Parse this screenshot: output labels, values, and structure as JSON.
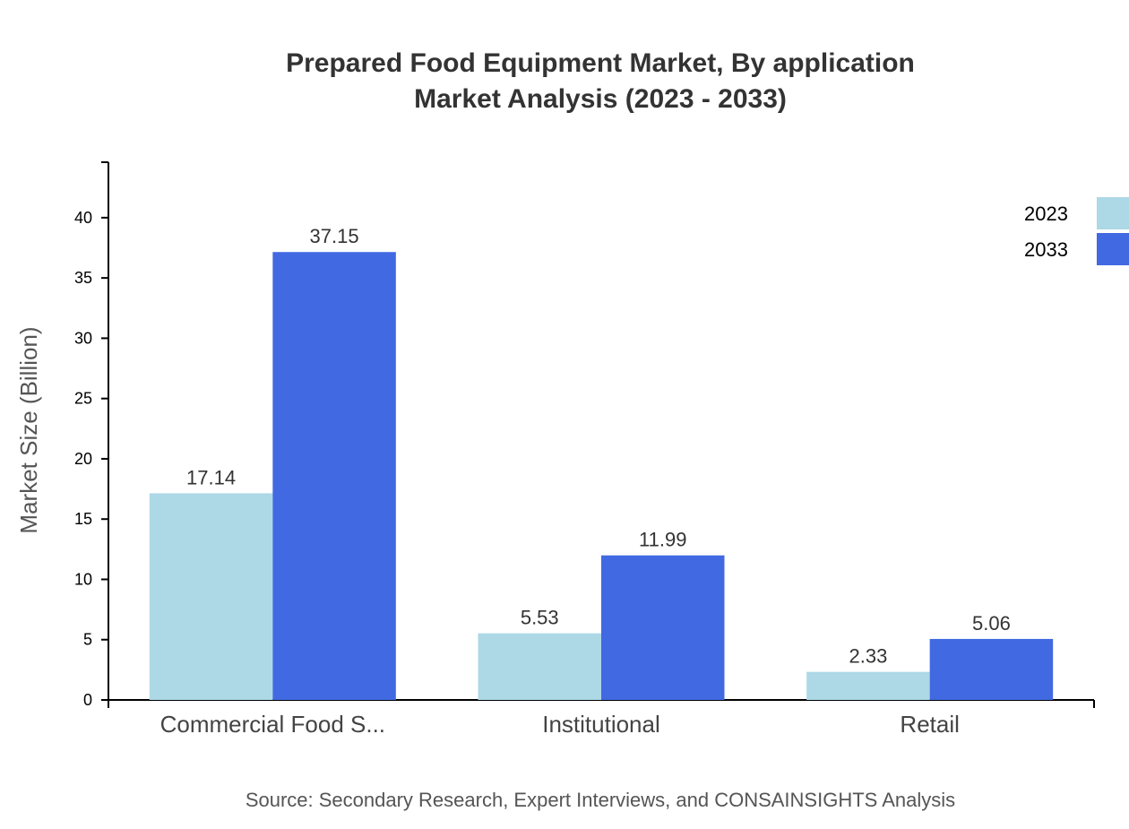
{
  "chart_data": {
    "type": "bar",
    "title": "Prepared Food Equipment Market, By application",
    "subtitle": "Market Analysis (2023 - 2033)",
    "xlabel": "",
    "ylabel": "Market Size (Billion)",
    "ylim": [
      0,
      44.6
    ],
    "yticks": [
      0,
      5,
      10,
      15,
      20,
      25,
      30,
      35,
      40
    ],
    "categories": [
      "Commercial Food S...",
      "Institutional",
      "Retail"
    ],
    "series": [
      {
        "name": "2023",
        "color": "#add8e6",
        "values": [
          17.14,
          5.53,
          2.33
        ]
      },
      {
        "name": "2033",
        "color": "#4169e1",
        "values": [
          37.15,
          11.99,
          5.06
        ]
      }
    ],
    "legend": "top-right",
    "grid": false,
    "source": "Source: Secondary Research, Expert Interviews, and CONSAINSIGHTS Analysis"
  }
}
